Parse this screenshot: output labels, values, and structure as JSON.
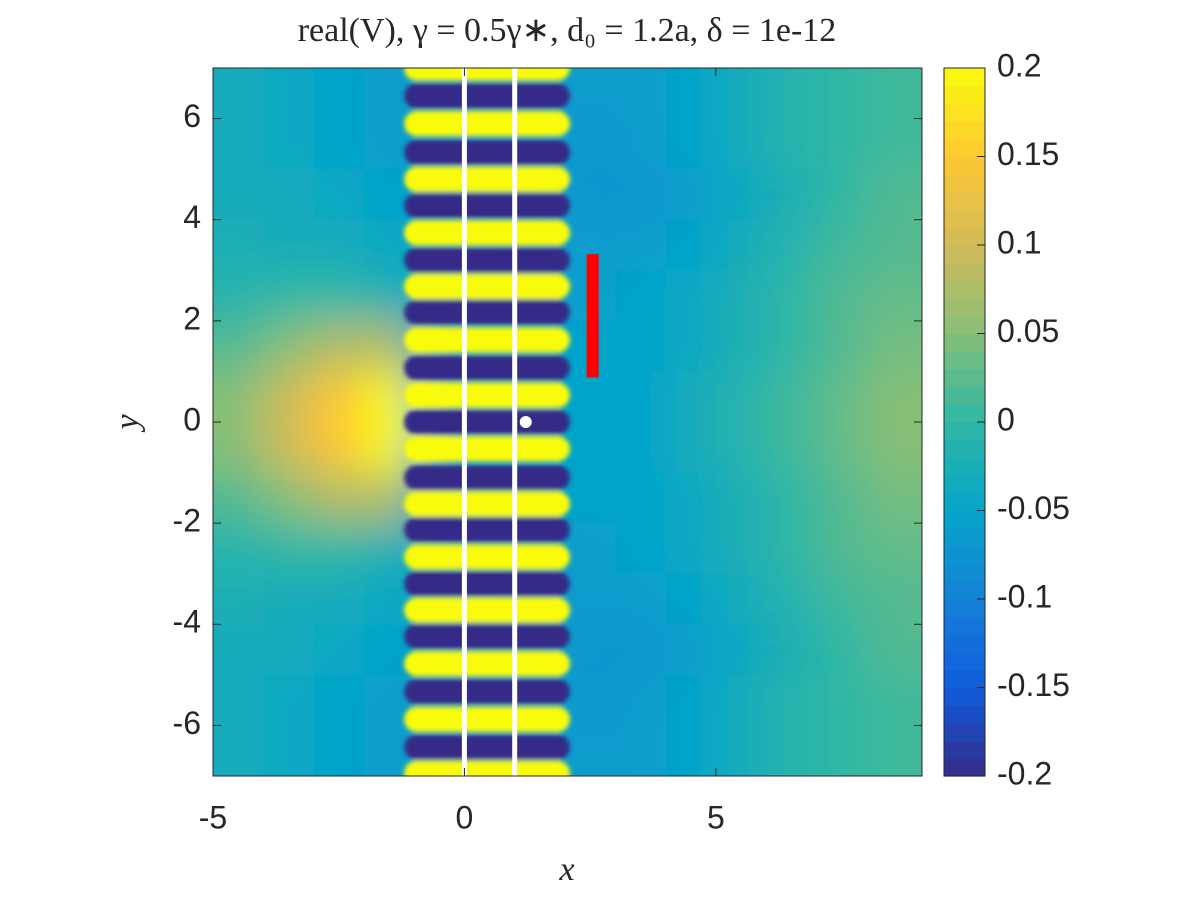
{
  "chart_data": {
    "type": "heatmap",
    "title": "real(V), γ = 0.5γ∗, d₀ = 1.2a, δ = 1e-12",
    "xlabel": "x",
    "ylabel": "y",
    "xlim": [
      -5,
      9.1
    ],
    "ylim": [
      -7,
      7
    ],
    "xticks": [
      -5,
      0,
      5
    ],
    "yticks": [
      -6,
      -4,
      -2,
      0,
      2,
      4,
      6
    ],
    "colormap": "parula",
    "clim": [
      -0.2,
      0.2
    ],
    "cticks": [
      -0.2,
      -0.15,
      -0.1,
      -0.05,
      0,
      0.05,
      0.1,
      0.15,
      0.2
    ],
    "x": [
      -4.5,
      -3.5,
      -2.5,
      -1.5,
      -0.5,
      0.5,
      1.5,
      2.5,
      3.5,
      4.5,
      5.5,
      6.5,
      7.5,
      8.5
    ],
    "y": [
      6.5,
      5.5,
      4.5,
      3.5,
      2.5,
      1.5,
      0.5,
      -0.5,
      -1.5,
      -2.5,
      -3.5,
      -4.5,
      -5.5,
      -6.5
    ],
    "z": [
      [
        -0.03,
        -0.04,
        -0.05,
        -0.06,
        -0.06,
        -0.06,
        -0.06,
        -0.06,
        -0.06,
        -0.05,
        -0.03,
        -0.01,
        0.0,
        0.01
      ],
      [
        -0.03,
        -0.04,
        -0.05,
        -0.06,
        -0.06,
        -0.06,
        -0.06,
        -0.07,
        -0.06,
        -0.05,
        -0.03,
        -0.01,
        0.0,
        0.01
      ],
      [
        -0.03,
        -0.03,
        -0.04,
        -0.05,
        -0.06,
        -0.06,
        -0.06,
        -0.07,
        -0.07,
        -0.06,
        -0.04,
        -0.02,
        0.0,
        0.02
      ],
      [
        -0.02,
        -0.03,
        -0.03,
        -0.04,
        -0.05,
        -0.06,
        -0.06,
        -0.06,
        -0.06,
        -0.05,
        -0.03,
        -0.01,
        0.01,
        0.02
      ],
      [
        -0.01,
        0.0,
        0.0,
        -0.02,
        -0.05,
        -0.06,
        -0.06,
        -0.06,
        -0.05,
        -0.04,
        -0.02,
        0.0,
        0.02,
        0.03
      ],
      [
        0.02,
        0.05,
        0.08,
        0.08,
        -0.05,
        -0.05,
        -0.05,
        -0.05,
        -0.05,
        -0.04,
        -0.02,
        0.0,
        0.02,
        0.04
      ],
      [
        0.05,
        0.1,
        0.15,
        0.2,
        -0.05,
        -0.05,
        -0.05,
        -0.05,
        -0.05,
        -0.03,
        -0.01,
        0.01,
        0.03,
        0.05
      ],
      [
        0.05,
        0.1,
        0.15,
        0.2,
        -0.05,
        -0.05,
        -0.05,
        -0.05,
        -0.05,
        -0.03,
        -0.01,
        0.01,
        0.03,
        0.05
      ],
      [
        0.02,
        0.05,
        0.08,
        0.08,
        -0.05,
        -0.05,
        -0.05,
        -0.05,
        -0.05,
        -0.04,
        -0.02,
        0.0,
        0.02,
        0.04
      ],
      [
        -0.01,
        0.0,
        0.0,
        -0.02,
        -0.05,
        -0.06,
        -0.06,
        -0.06,
        -0.05,
        -0.04,
        -0.02,
        0.0,
        0.02,
        0.03
      ],
      [
        -0.02,
        -0.03,
        -0.03,
        -0.04,
        -0.05,
        -0.06,
        -0.06,
        -0.06,
        -0.06,
        -0.05,
        -0.03,
        -0.01,
        0.01,
        0.02
      ],
      [
        -0.03,
        -0.03,
        -0.04,
        -0.05,
        -0.06,
        -0.06,
        -0.06,
        -0.07,
        -0.07,
        -0.06,
        -0.04,
        -0.02,
        0.0,
        0.02
      ],
      [
        -0.03,
        -0.04,
        -0.05,
        -0.06,
        -0.06,
        -0.06,
        -0.06,
        -0.07,
        -0.06,
        -0.05,
        -0.03,
        -0.01,
        0.0,
        0.01
      ],
      [
        -0.03,
        -0.04,
        -0.05,
        -0.06,
        -0.06,
        -0.06,
        -0.06,
        -0.06,
        -0.06,
        -0.05,
        -0.03,
        -0.01,
        0.0,
        0.01
      ]
    ],
    "stripe_xlim": [
      -1.2,
      2.1
    ],
    "stripe_y": [
      7.0,
      6.45,
      5.9,
      5.33,
      4.8,
      4.28,
      3.74,
      3.2,
      2.68,
      2.17,
      1.62,
      1.07,
      0.53,
      0,
      -0.53,
      -1.1,
      -1.62,
      -2.13,
      -2.67,
      -3.2,
      -3.72,
      -4.24,
      -4.78,
      -5.33,
      -5.88,
      -6.43,
      -6.95
    ],
    "stripe_values": [
      0.2,
      -0.2,
      0.2,
      -0.2,
      0.2,
      -0.2,
      0.2,
      -0.2,
      0.2,
      -0.2,
      0.2,
      -0.2,
      0.2,
      -0.2,
      0.2,
      -0.2,
      0.2,
      -0.2,
      0.2,
      -0.2,
      0.2,
      -0.2,
      0.2,
      -0.2,
      0.2,
      -0.2,
      0.2
    ],
    "vlines": [
      0,
      1
    ],
    "vline_color": "#ffffff",
    "segment": {
      "x": 2.55,
      "y": [
        0.88,
        3.32
      ],
      "color": "#ff0000"
    },
    "point": {
      "x": 1.22,
      "y": 0,
      "color": "#ffffff"
    }
  }
}
